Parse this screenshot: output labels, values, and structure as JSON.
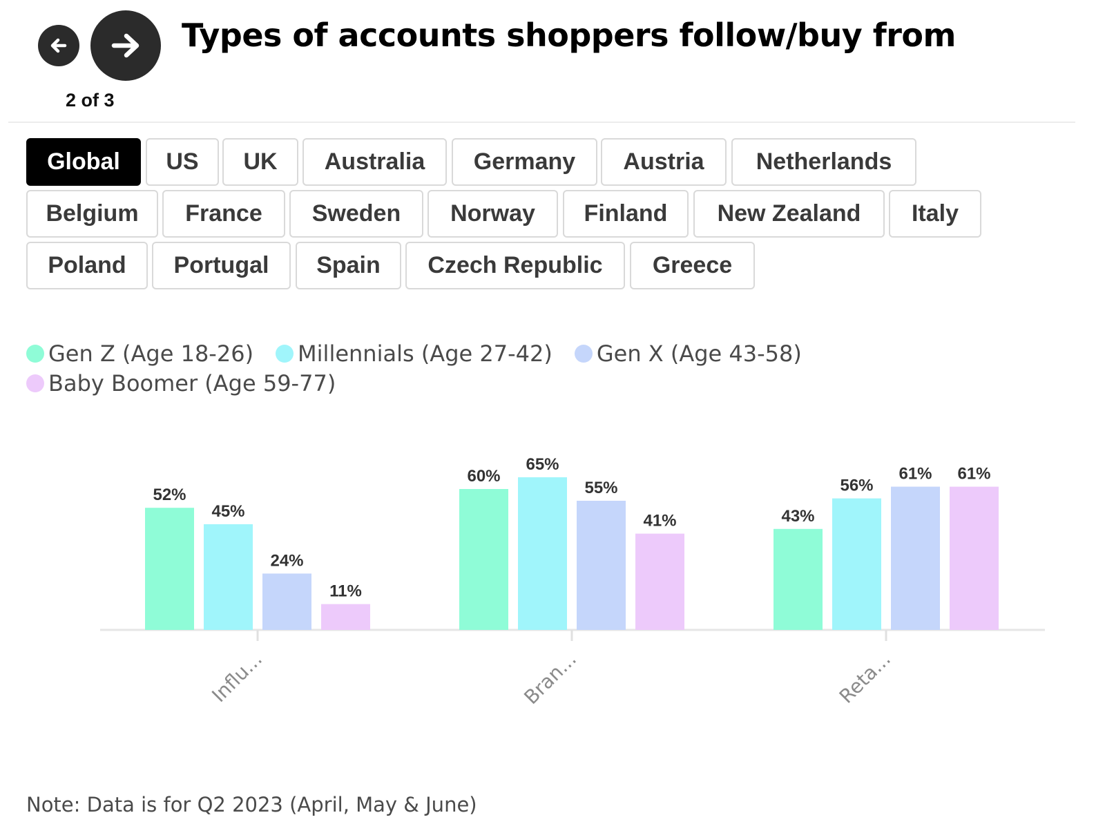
{
  "header": {
    "title": "Types of accounts shoppers follow/buy from",
    "page_counter": "2 of 3",
    "prev_icon": "arrow-left-icon",
    "next_icon": "arrow-right-icon"
  },
  "tabs": {
    "active": "Global",
    "rows": [
      [
        "Global",
        "US",
        "UK",
        "Australia",
        "Germany",
        "Austria",
        "Netherlands"
      ],
      [
        "Belgium",
        "France",
        "Sweden",
        "Norway",
        "Finland",
        "New Zealand",
        "Italy"
      ],
      [
        "Poland",
        "Portugal",
        "Spain",
        "Czech Republic",
        "Greece"
      ]
    ]
  },
  "chart_data": {
    "type": "bar",
    "categories": [
      "Influ...",
      "Bran...",
      "Reta..."
    ],
    "series": [
      {
        "name": "Gen Z (Age 18-26)",
        "values": [
          52,
          60,
          43
        ],
        "color": "#8ffcd7"
      },
      {
        "name": "Millennials (Age 27-42)",
        "values": [
          45,
          65,
          56
        ],
        "color": "#a0f5fb"
      },
      {
        "name": "Gen X (Age 43-58)",
        "values": [
          24,
          55,
          61
        ],
        "color": "#c5d6fb"
      },
      {
        "name": "Baby Boomer (Age 59-77)",
        "values": [
          11,
          41,
          61
        ],
        "color": "#edcafb"
      }
    ],
    "value_suffix": "%",
    "legend_position": "top-left",
    "grid": false,
    "title": "",
    "xlabel": "",
    "ylabel": ""
  },
  "note": "Note: Data is for Q2 2023 (April, May & June)"
}
